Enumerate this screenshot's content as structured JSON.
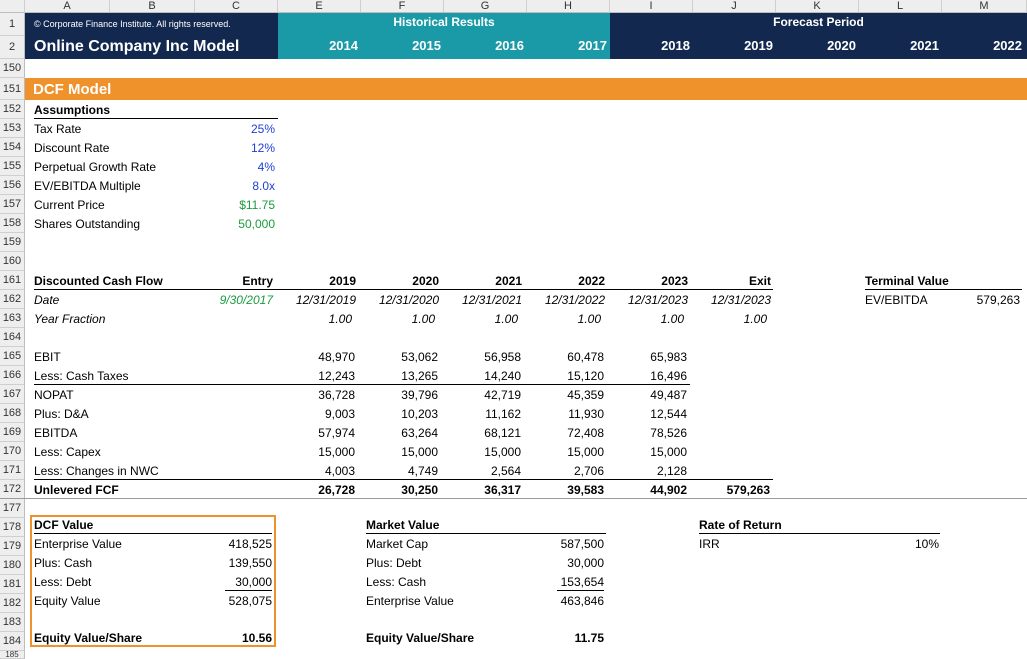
{
  "columns": [
    "A",
    "B",
    "C",
    "E",
    "F",
    "G",
    "H",
    "I",
    "J",
    "K",
    "L",
    "M"
  ],
  "row_numbers": [
    "1",
    "2",
    "150",
    "151",
    "152",
    "153",
    "154",
    "155",
    "156",
    "157",
    "158",
    "159",
    "160",
    "161",
    "162",
    "163",
    "164",
    "165",
    "166",
    "167",
    "168",
    "169",
    "170",
    "171",
    "172",
    "177",
    "178",
    "179",
    "180",
    "181",
    "182",
    "183",
    "184",
    "185"
  ],
  "header": {
    "copyright": "© Corporate Finance Institute. All rights reserved.",
    "model_title": "Online Company Inc Model",
    "historical_label": "Historical Results",
    "forecast_label": "Forecast Period",
    "years": [
      "2014",
      "2015",
      "2016",
      "2017",
      "2018",
      "2019",
      "2020",
      "2021",
      "2022"
    ]
  },
  "section_title": "DCF Model",
  "assumptions": {
    "title": "Assumptions",
    "items": [
      {
        "label": "Tax Rate",
        "value": "25%"
      },
      {
        "label": "Discount Rate",
        "value": "12%"
      },
      {
        "label": "Perpetual Growth Rate",
        "value": "4%"
      },
      {
        "label": "EV/EBITDA Multiple",
        "value": "8.0x"
      },
      {
        "label": "Current Price",
        "value": "$11.75"
      },
      {
        "label": "Shares Outstanding",
        "value": "50,000"
      }
    ]
  },
  "dcf": {
    "title": "Discounted Cash Flow",
    "col_headers": [
      "Entry",
      "2019",
      "2020",
      "2021",
      "2022",
      "2023",
      "Exit"
    ],
    "date_label": "Date",
    "dates": [
      "9/30/2017",
      "12/31/2019",
      "12/31/2020",
      "12/31/2021",
      "12/31/2022",
      "12/31/2023",
      "12/31/2023"
    ],
    "year_fraction_label": "Year Fraction",
    "fractions": [
      "1.00",
      "1.00",
      "1.00",
      "1.00",
      "1.00",
      "1.00"
    ],
    "rows": [
      {
        "label": "EBIT",
        "values": [
          "48,970",
          "53,062",
          "56,958",
          "60,478",
          "65,983"
        ]
      },
      {
        "label": "Less: Cash Taxes",
        "values": [
          "12,243",
          "13,265",
          "14,240",
          "15,120",
          "16,496"
        ]
      },
      {
        "label": "NOPAT",
        "values": [
          "36,728",
          "39,796",
          "42,719",
          "45,359",
          "49,487"
        ]
      },
      {
        "label": "Plus: D&A",
        "values": [
          "9,003",
          "10,203",
          "11,162",
          "11,930",
          "12,544"
        ]
      },
      {
        "label": "EBITDA",
        "values": [
          "57,974",
          "63,264",
          "68,121",
          "72,408",
          "78,526"
        ]
      },
      {
        "label": "Less: Capex",
        "values": [
          "15,000",
          "15,000",
          "15,000",
          "15,000",
          "15,000"
        ]
      },
      {
        "label": "Less: Changes in NWC",
        "values": [
          "4,003",
          "4,749",
          "2,564",
          "2,706",
          "2,128"
        ]
      }
    ],
    "ufcf_label": "Unlevered FCF",
    "ufcf_values": [
      "26,728",
      "30,250",
      "36,317",
      "39,583",
      "44,902",
      "579,263"
    ]
  },
  "terminal": {
    "title": "Terminal Value",
    "label": "EV/EBITDA",
    "value": "579,263"
  },
  "dcf_value": {
    "title": "DCF Value",
    "items": [
      {
        "label": "Enterprise Value",
        "value": "418,525"
      },
      {
        "label": "Plus: Cash",
        "value": "139,550"
      },
      {
        "label": "Less: Debt",
        "value": "30,000"
      },
      {
        "label": "Equity Value",
        "value": "528,075"
      }
    ],
    "per_share_label": "Equity Value/Share",
    "per_share_value": "10.56"
  },
  "market_value": {
    "title": "Market Value",
    "items": [
      {
        "label": "Market Cap",
        "value": "587,500"
      },
      {
        "label": "Plus: Debt",
        "value": "30,000"
      },
      {
        "label": "Less: Cash",
        "value": "153,654"
      },
      {
        "label": "Enterprise Value",
        "value": "463,846"
      }
    ],
    "per_share_label": "Equity Value/Share",
    "per_share_value": "11.75"
  },
  "rate_of_return": {
    "title": "Rate of Return",
    "label": "IRR",
    "value": "10%"
  },
  "colors": {
    "navy": "#13284f",
    "teal": "#1a9aa6",
    "orange": "#f0922b",
    "gray": "#eeeeee"
  }
}
